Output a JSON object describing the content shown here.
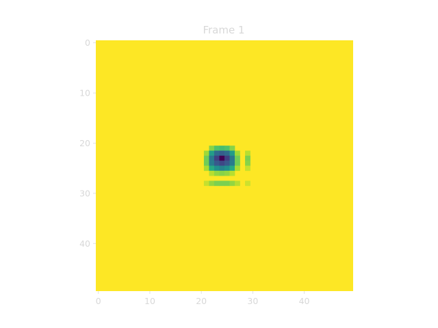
{
  "chart_data": {
    "type": "heatmap",
    "title": "Frame 1",
    "xlabel": "",
    "ylabel": "",
    "grid_size": [
      50,
      50
    ],
    "xlim": [
      -0.5,
      49.5
    ],
    "ylim": [
      49.5,
      -0.5
    ],
    "xticks": [
      0,
      10,
      20,
      30,
      40
    ],
    "yticks": [
      0,
      10,
      20,
      30,
      40
    ],
    "colormap": "viridis",
    "background_value": 1.0,
    "cells": [
      {
        "r": 21,
        "c": 22,
        "v": 0.82
      },
      {
        "r": 21,
        "c": 23,
        "v": 0.72
      },
      {
        "r": 21,
        "c": 24,
        "v": 0.7
      },
      {
        "r": 21,
        "c": 25,
        "v": 0.72
      },
      {
        "r": 21,
        "c": 26,
        "v": 0.82
      },
      {
        "r": 22,
        "c": 21,
        "v": 0.86
      },
      {
        "r": 22,
        "c": 22,
        "v": 0.55
      },
      {
        "r": 22,
        "c": 23,
        "v": 0.35
      },
      {
        "r": 22,
        "c": 24,
        "v": 0.3
      },
      {
        "r": 22,
        "c": 25,
        "v": 0.35
      },
      {
        "r": 22,
        "c": 26,
        "v": 0.55
      },
      {
        "r": 22,
        "c": 27,
        "v": 0.86
      },
      {
        "r": 22,
        "c": 29,
        "v": 0.9
      },
      {
        "r": 23,
        "c": 21,
        "v": 0.78
      },
      {
        "r": 23,
        "c": 22,
        "v": 0.4
      },
      {
        "r": 23,
        "c": 23,
        "v": 0.2
      },
      {
        "r": 23,
        "c": 24,
        "v": 0.0
      },
      {
        "r": 23,
        "c": 25,
        "v": 0.2
      },
      {
        "r": 23,
        "c": 26,
        "v": 0.4
      },
      {
        "r": 23,
        "c": 27,
        "v": 0.78
      },
      {
        "r": 23,
        "c": 29,
        "v": 0.8
      },
      {
        "r": 24,
        "c": 21,
        "v": 0.78
      },
      {
        "r": 24,
        "c": 22,
        "v": 0.42
      },
      {
        "r": 24,
        "c": 23,
        "v": 0.28
      },
      {
        "r": 24,
        "c": 24,
        "v": 0.22
      },
      {
        "r": 24,
        "c": 25,
        "v": 0.28
      },
      {
        "r": 24,
        "c": 26,
        "v": 0.42
      },
      {
        "r": 24,
        "c": 27,
        "v": 0.78
      },
      {
        "r": 24,
        "c": 29,
        "v": 0.82
      },
      {
        "r": 25,
        "c": 21,
        "v": 0.88
      },
      {
        "r": 25,
        "c": 22,
        "v": 0.62
      },
      {
        "r": 25,
        "c": 23,
        "v": 0.5
      },
      {
        "r": 25,
        "c": 24,
        "v": 0.45
      },
      {
        "r": 25,
        "c": 25,
        "v": 0.5
      },
      {
        "r": 25,
        "c": 26,
        "v": 0.62
      },
      {
        "r": 25,
        "c": 27,
        "v": 0.88
      },
      {
        "r": 25,
        "c": 29,
        "v": 0.92
      },
      {
        "r": 26,
        "c": 22,
        "v": 0.9
      },
      {
        "r": 26,
        "c": 23,
        "v": 0.84
      },
      {
        "r": 26,
        "c": 24,
        "v": 0.82
      },
      {
        "r": 26,
        "c": 25,
        "v": 0.84
      },
      {
        "r": 26,
        "c": 26,
        "v": 0.9
      },
      {
        "r": 28,
        "c": 21,
        "v": 0.92
      },
      {
        "r": 28,
        "c": 22,
        "v": 0.84
      },
      {
        "r": 28,
        "c": 23,
        "v": 0.8
      },
      {
        "r": 28,
        "c": 24,
        "v": 0.8
      },
      {
        "r": 28,
        "c": 25,
        "v": 0.8
      },
      {
        "r": 28,
        "c": 26,
        "v": 0.84
      },
      {
        "r": 28,
        "c": 27,
        "v": 0.9
      },
      {
        "r": 28,
        "c": 29,
        "v": 0.93
      }
    ]
  }
}
